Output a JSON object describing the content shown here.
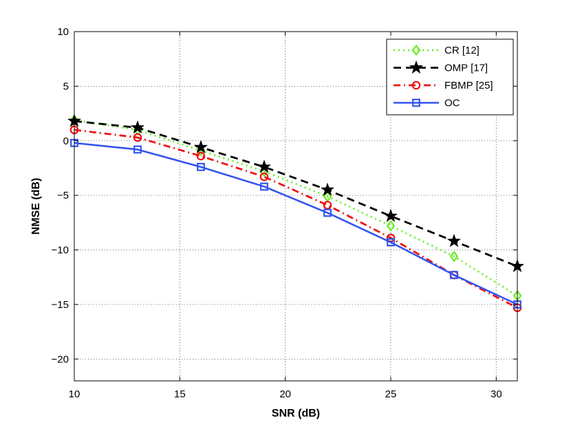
{
  "chart_data": {
    "type": "line",
    "title": "",
    "xlabel": "SNR (dB)",
    "ylabel": "NMSE (dB)",
    "xlim": [
      10,
      31
    ],
    "ylim": [
      -22,
      10
    ],
    "xticks": [
      10,
      15,
      20,
      25,
      30
    ],
    "yticks": [
      10,
      5,
      0,
      -5,
      -10,
      -15,
      -20
    ],
    "xtick_labels": [
      "10",
      "15",
      "20",
      "25",
      "30"
    ],
    "ytick_labels": [
      "10",
      "5",
      "0",
      "−5",
      "−10",
      "−15",
      "−20"
    ],
    "grid": true,
    "legend_position": "top-right",
    "x": [
      10,
      13,
      16,
      19,
      22,
      25,
      28,
      31
    ],
    "series": [
      {
        "name": "CR [12]",
        "color": "#66ee22",
        "marker": "diamond",
        "line": "dotted",
        "values": [
          1.9,
          1.0,
          -0.9,
          -2.8,
          -5.1,
          -7.8,
          -10.6,
          -14.2
        ]
      },
      {
        "name": "OMP [17]",
        "color": "#000000",
        "marker": "star",
        "line": "dashed",
        "values": [
          1.8,
          1.2,
          -0.6,
          -2.4,
          -4.5,
          -6.9,
          -9.2,
          -11.5
        ]
      },
      {
        "name": "FBMP [25]",
        "color": "#ee1111",
        "marker": "circle",
        "line": "dashdot",
        "values": [
          1.0,
          0.3,
          -1.4,
          -3.3,
          -5.9,
          -8.9,
          -12.3,
          -15.3
        ]
      },
      {
        "name": "OC",
        "color": "#3355ee",
        "marker": "square",
        "line": "solid",
        "values": [
          -0.2,
          -0.8,
          -2.4,
          -4.2,
          -6.6,
          -9.3,
          -12.3,
          -15.0
        ]
      }
    ]
  }
}
